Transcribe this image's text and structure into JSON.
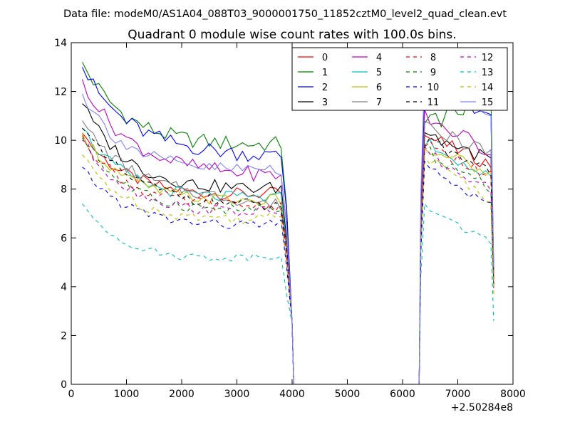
{
  "suptitle": "Data file: modeM0/AS1A04_088T03_9000001750_11852cztM0_level2_quad_clean.evt",
  "chart_data": {
    "type": "line",
    "title": "Quadrant 0 module wise count rates with 100.0s bins.",
    "xlabel": "",
    "ylabel": "",
    "x_offset_label": "+2.50284e8",
    "xlim": [
      0,
      8000
    ],
    "ylim": [
      0,
      14
    ],
    "xticks": [
      0,
      1000,
      2000,
      3000,
      4000,
      5000,
      6000,
      7000,
      8000
    ],
    "yticks": [
      0,
      2,
      4,
      6,
      8,
      10,
      12,
      14
    ],
    "xtick_labels": [
      "0",
      "1000",
      "2000",
      "3000",
      "4000",
      "5000",
      "6000",
      "7000",
      "8000"
    ],
    "ytick_labels": [
      "0",
      "2",
      "4",
      "6",
      "8",
      "10",
      "12",
      "14"
    ],
    "legend_position": "top-right",
    "legend_columns": 4,
    "segments": [
      {
        "x_start": 200,
        "x_end": 3800,
        "step": 100
      },
      {
        "x_start": 6400,
        "x_end": 7600,
        "step": 100
      }
    ],
    "series": [
      {
        "name": "0",
        "color": "#ff0000",
        "dashed": false,
        "start": 10.3,
        "plateau": 7.6,
        "end": 7.8,
        "first": 10.2,
        "last": 9.0,
        "drop": 5.0
      },
      {
        "name": "1",
        "color": "#008000",
        "dashed": false,
        "start": 13.2,
        "plateau": 9.7,
        "end": 9.8,
        "first": 10.6,
        "last": 11.8,
        "drop": 4.7
      },
      {
        "name": "2",
        "color": "#0000ff",
        "dashed": false,
        "start": 13.0,
        "plateau": 9.5,
        "end": 9.3,
        "first": 11.9,
        "last": 11.0,
        "drop": 4.6
      },
      {
        "name": "3",
        "color": "#000000",
        "dashed": false,
        "start": 11.5,
        "plateau": 7.9,
        "end": 8.0,
        "first": 10.3,
        "last": 9.2,
        "drop": 4.5
      },
      {
        "name": "4",
        "color": "#bf00bf",
        "dashed": false,
        "start": 12.5,
        "plateau": 8.7,
        "end": 8.5,
        "first": 11.0,
        "last": 9.5,
        "drop": 4.4
      },
      {
        "name": "5",
        "color": "#00bfbf",
        "dashed": false,
        "start": 10.5,
        "plateau": 7.5,
        "end": 7.6,
        "first": 10.0,
        "last": 8.4,
        "drop": 4.3
      },
      {
        "name": "6",
        "color": "#bfbf00",
        "dashed": false,
        "start": 10.3,
        "plateau": 7.4,
        "end": 7.5,
        "first": 9.8,
        "last": 8.6,
        "drop": 4.3
      },
      {
        "name": "7",
        "color": "#808080",
        "dashed": false,
        "start": 10.8,
        "plateau": 7.8,
        "end": 7.3,
        "first": 10.5,
        "last": 9.5,
        "drop": 4.6
      },
      {
        "name": "8",
        "color": "#ff0000",
        "dashed": true,
        "start": 10.2,
        "plateau": 7.2,
        "end": 7.3,
        "first": 9.9,
        "last": 8.5,
        "drop": 4.2
      },
      {
        "name": "9",
        "color": "#008000",
        "dashed": true,
        "start": 10.1,
        "plateau": 7.0,
        "end": 7.1,
        "first": 9.6,
        "last": 8.0,
        "drop": 4.0
      },
      {
        "name": "10",
        "color": "#0000ff",
        "dashed": true,
        "start": 8.9,
        "plateau": 6.4,
        "end": 6.5,
        "first": 8.9,
        "last": 7.4,
        "drop": 3.9
      },
      {
        "name": "11",
        "color": "#000000",
        "dashed": true,
        "start": 10.5,
        "plateau": 7.5,
        "end": 7.2,
        "first": 10.0,
        "last": 8.8,
        "drop": 4.1
      },
      {
        "name": "12",
        "color": "#bf00bf",
        "dashed": true,
        "start": 10.0,
        "plateau": 7.0,
        "end": 7.0,
        "first": 9.5,
        "last": 7.9,
        "drop": 3.9
      },
      {
        "name": "13",
        "color": "#00bfbf",
        "dashed": true,
        "start": 7.4,
        "plateau": 4.9,
        "end": 5.3,
        "first": 7.3,
        "last": 5.8,
        "drop": 2.6
      },
      {
        "name": "14",
        "color": "#bfbf00",
        "dashed": true,
        "start": 9.4,
        "plateau": 6.6,
        "end": 6.8,
        "first": 9.3,
        "last": 7.6,
        "drop": 3.7
      },
      {
        "name": "15",
        "color": "#8080ff",
        "dashed": false,
        "start": 11.9,
        "plateau": 8.6,
        "end": 8.8,
        "first": 12.9,
        "last": 10.7,
        "drop": 4.8
      }
    ]
  }
}
